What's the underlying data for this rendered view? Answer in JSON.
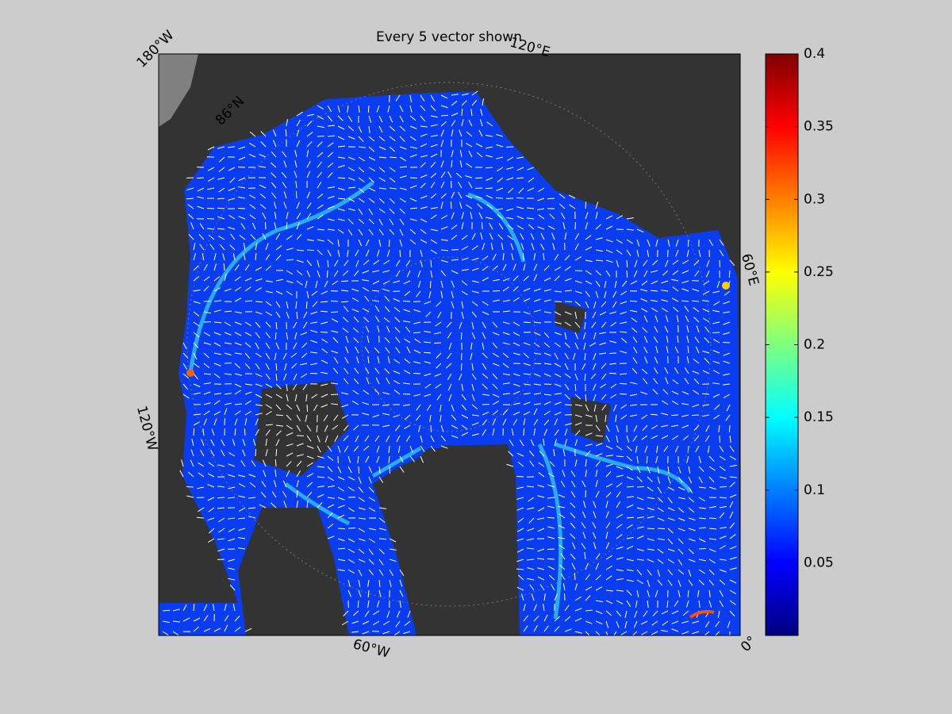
{
  "title": "Every 5 vector shown",
  "map_labels": {
    "lon_180w": "180°W",
    "lon_120e": "120°E",
    "lat_86n": "86°N",
    "lon_60e": "60°E",
    "lon_120w": "120°W",
    "lon_60w": "60°W",
    "lon_0": "0°"
  },
  "colorbar": {
    "colormap": "jet",
    "clim": [
      0,
      0.4
    ],
    "ticks": [
      0.05,
      0.1,
      0.15,
      0.2,
      0.25,
      0.3,
      0.35,
      0.4
    ]
  }
}
